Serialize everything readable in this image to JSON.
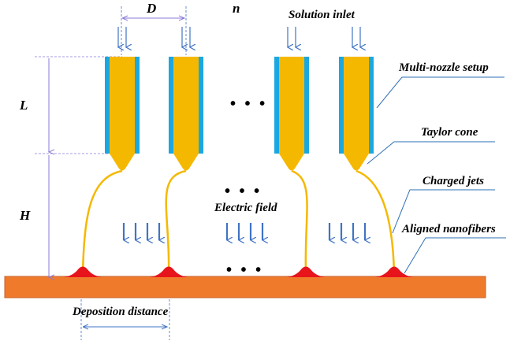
{
  "labels": {
    "D": "D",
    "n": "n",
    "L": "L",
    "H": "H",
    "solution_inlet": "Solution inlet",
    "multi_nozzle": "Multi-nozzle setup",
    "taylor_cone": "Taylor  cone",
    "charged_jets": "Charged jets",
    "aligned_nanofibers": "Aligned nanofibers",
    "electric_field": "Electric field",
    "deposition_distance": "Deposition distance",
    "ellipsis": "• • •"
  },
  "colors": {
    "nozzle_core": "#F5B800",
    "nozzle_sleeve": "#1BA7E0",
    "jet": "#F5B800",
    "deposit": "#E8141B",
    "collector": "#F07A2C",
    "arrow": "#3F74C4",
    "dim_line": "#8A7BD8",
    "leader": "#2E6FB5"
  },
  "nozzle_count_shown": 4
}
